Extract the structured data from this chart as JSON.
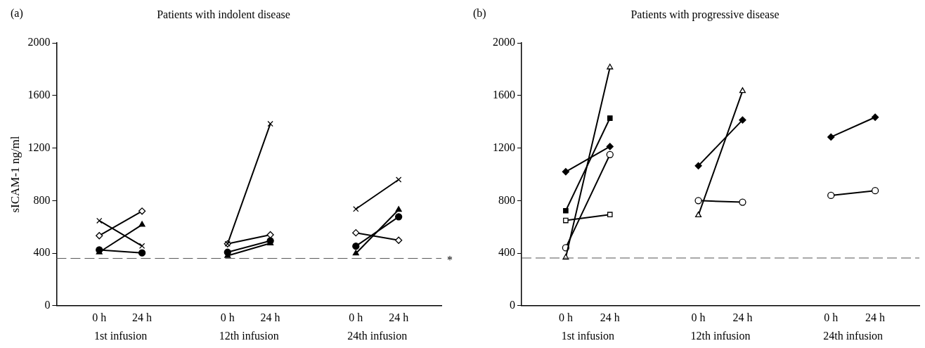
{
  "chart_data": [
    {
      "type": "line",
      "title": "Patients with indolent disease",
      "ylabel": "sICAM-1 ng/ml",
      "categories": [
        null,
        "0 h",
        "24 h",
        null,
        "0 h",
        "24 h",
        null,
        "0 h",
        "24 h",
        null
      ],
      "annotations": [
        "(a)",
        "1st infusion",
        "12th infusion",
        "24th infusion"
      ],
      "ylim": [
        0,
        2000
      ],
      "yticks": [
        0,
        400,
        800,
        1200,
        1600,
        2000
      ],
      "grid": false,
      "legend": false,
      "line_style": "solid",
      "ref_lines": [
        {
          "axis": "y",
          "value": 360,
          "label": "*",
          "color": "#555555",
          "line_style": "dashed"
        }
      ],
      "series": [
        {
          "color": "#000000",
          "marker": "cross",
          "values": [
            null,
            647,
            455,
            null,
            471,
            1385,
            null,
            736,
            960,
            null
          ]
        },
        {
          "color": "#ffffff",
          "marker": "diamond",
          "values": [
            null,
            533,
            720,
            null,
            471,
            540,
            null,
            555,
            498,
            null
          ]
        },
        {
          "color": "#000000",
          "marker": "triangle",
          "values": [
            null,
            407,
            617,
            null,
            380,
            475,
            null,
            398,
            731,
            null
          ]
        },
        {
          "color": "#000000",
          "marker": "circle",
          "values": [
            null,
            425,
            402,
            null,
            407,
            494,
            null,
            453,
            677,
            null
          ]
        }
      ]
    },
    {
      "type": "line",
      "title": "Patients with progressive disease",
      "categories": [
        null,
        "0 h",
        "24 h",
        null,
        "0 h",
        "24 h",
        null,
        "0 h",
        "24 h",
        null
      ],
      "annotations": [
        "(b)",
        "1st infusion",
        "12th infusion",
        "24th infusion"
      ],
      "ylim": [
        0,
        2000
      ],
      "yticks": [
        0,
        400,
        800,
        1200,
        1600,
        2000
      ],
      "grid": false,
      "legend": false,
      "line_style": "solid",
      "ref_lines": [
        {
          "axis": "y",
          "value": 363,
          "color": "#555555",
          "line_style": "dashed"
        }
      ],
      "series": [
        {
          "color": "#ffffff",
          "marker": "triangle",
          "values": [
            null,
            367,
            1815,
            null,
            689,
            1635,
            null,
            null,
            null,
            null
          ]
        },
        {
          "color": "#000000",
          "marker": "square",
          "values": [
            null,
            723,
            1428,
            null,
            null,
            null,
            null,
            null,
            null,
            null
          ]
        },
        {
          "color": "#000000",
          "marker": "diamond",
          "values": [
            null,
            1020,
            1212,
            null,
            1065,
            1414,
            null,
            1284,
            1435,
            null
          ]
        },
        {
          "color": "#ffffff",
          "marker": "circle",
          "values": [
            null,
            441,
            1151,
            null,
            800,
            788,
            null,
            840,
            876,
            null
          ]
        },
        {
          "color": "#ffffff",
          "marker": "square",
          "values": [
            null,
            649,
            694,
            null,
            null,
            null,
            null,
            null,
            null,
            null
          ]
        }
      ]
    }
  ]
}
